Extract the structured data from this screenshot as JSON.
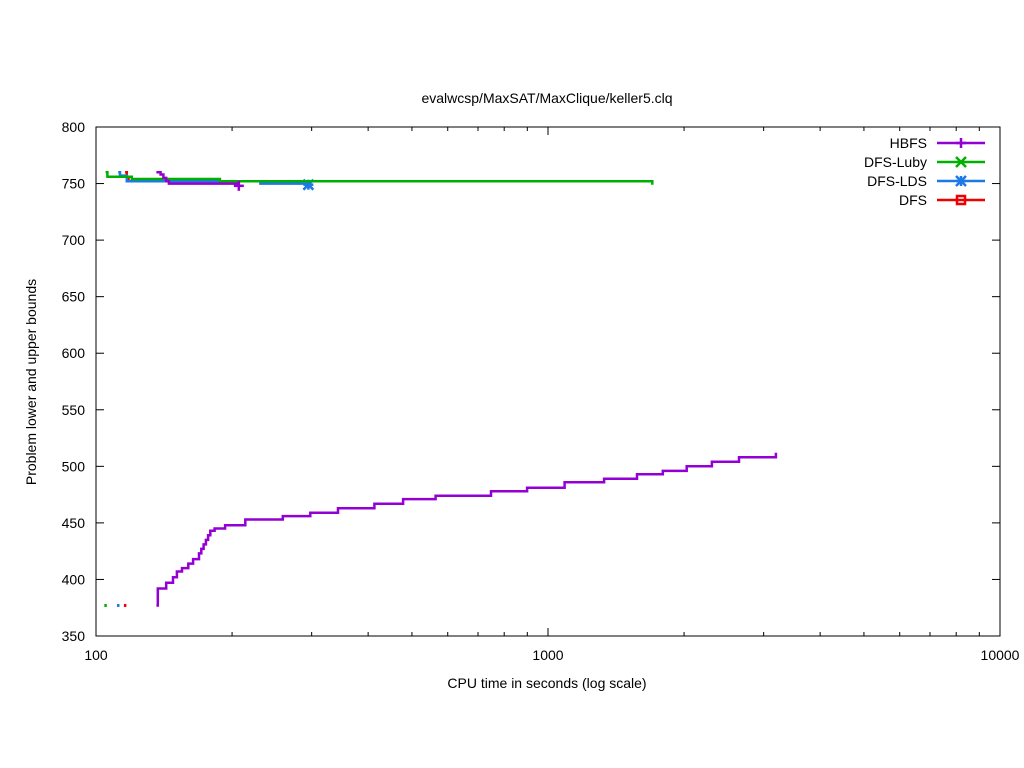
{
  "chart_data": {
    "type": "line",
    "title": "evalwcsp/MaxSAT/MaxClique/keller5.clq",
    "xlabel": "CPU time in seconds (log scale)",
    "ylabel": "Problem lower and upper bounds",
    "xscale": "log",
    "xlim": [
      100,
      10000
    ],
    "ylim": [
      350,
      800
    ],
    "x_ticks": [
      100,
      1000,
      10000
    ],
    "x_tick_labels": [
      "100",
      "1000",
      "10000"
    ],
    "y_ticks": [
      350,
      400,
      450,
      500,
      550,
      600,
      650,
      700,
      750,
      800
    ],
    "grid": false,
    "legend_position": "top-right",
    "series": [
      {
        "name": "HBFS",
        "color": "#9400d3",
        "marker": "plus",
        "upper": [
          [
            136,
            760
          ],
          [
            139,
            758
          ],
          [
            141,
            755
          ],
          [
            143,
            752
          ],
          [
            145,
            750
          ],
          [
            207,
            748
          ]
        ],
        "lower": [
          [
            136,
            377
          ],
          [
            137,
            392
          ],
          [
            142,
            392
          ],
          [
            143,
            397
          ],
          [
            146,
            397
          ],
          [
            148,
            402
          ],
          [
            150,
            402
          ],
          [
            151,
            407
          ],
          [
            154,
            407
          ],
          [
            155,
            410
          ],
          [
            158,
            410
          ],
          [
            160,
            414
          ],
          [
            162,
            414
          ],
          [
            164,
            418
          ],
          [
            167,
            418
          ],
          [
            169,
            423
          ],
          [
            171,
            427
          ],
          [
            173,
            431
          ],
          [
            175,
            435
          ],
          [
            177,
            439
          ],
          [
            179,
            443
          ],
          [
            183,
            445
          ],
          [
            192,
            445
          ],
          [
            193,
            448
          ],
          [
            213,
            448
          ],
          [
            214,
            453
          ],
          [
            258,
            453
          ],
          [
            259,
            456
          ],
          [
            297,
            456
          ],
          [
            298,
            459
          ],
          [
            342,
            459
          ],
          [
            343,
            463
          ],
          [
            412,
            463
          ],
          [
            413,
            467
          ],
          [
            477,
            467
          ],
          [
            478,
            471
          ],
          [
            563,
            471
          ],
          [
            564,
            474
          ],
          [
            747,
            474
          ],
          [
            748,
            478
          ],
          [
            898,
            478
          ],
          [
            899,
            481
          ],
          [
            1087,
            481
          ],
          [
            1088,
            486
          ],
          [
            1330,
            486
          ],
          [
            1331,
            489
          ],
          [
            1573,
            489
          ],
          [
            1574,
            493
          ],
          [
            1794,
            493
          ],
          [
            1795,
            496
          ],
          [
            2026,
            496
          ],
          [
            2027,
            500
          ],
          [
            2304,
            500
          ],
          [
            2305,
            504
          ],
          [
            2645,
            504
          ],
          [
            2646,
            508
          ],
          [
            3192,
            508
          ],
          [
            3193,
            512
          ]
        ]
      },
      {
        "name": "DFS-Luby",
        "color": "#00b000",
        "marker": "x",
        "upper": [
          [
            105,
            760
          ],
          [
            106,
            756
          ],
          [
            119,
            756
          ],
          [
            120,
            754
          ],
          [
            187,
            754
          ],
          [
            188,
            752
          ],
          [
            1700,
            752
          ],
          [
            1701,
            749
          ]
        ],
        "lower": [
          [
            105,
            377
          ]
        ]
      },
      {
        "name": "DFS-LDS",
        "color": "#1e78e8",
        "marker": "asterisk",
        "upper": [
          [
            112,
            760
          ],
          [
            113,
            757
          ],
          [
            117,
            752
          ],
          [
            230,
            752
          ],
          [
            231,
            750
          ],
          [
            293,
            750
          ],
          [
            295,
            749
          ]
        ],
        "lower": [
          [
            112,
            377
          ]
        ]
      },
      {
        "name": "DFS",
        "color": "#ee0000",
        "marker": "square",
        "upper": [
          [
            116,
            760
          ],
          [
            117,
            756
          ],
          [
            118,
            753
          ]
        ],
        "lower": [
          [
            116,
            377
          ]
        ]
      }
    ]
  }
}
